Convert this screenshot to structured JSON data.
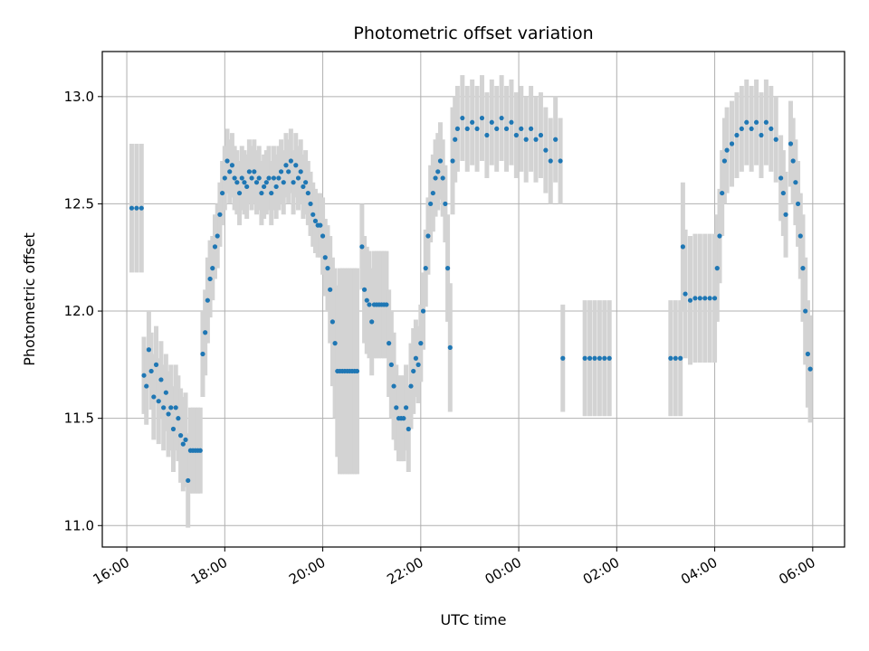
{
  "chart_data": {
    "type": "scatter",
    "title": "Photometric offset variation",
    "xlabel": "UTC time",
    "ylabel": "Photometric offset",
    "x_unit": "hours since 16:00 UTC",
    "xlim": [
      -0.5,
      14.65
    ],
    "ylim": [
      10.9,
      13.21
    ],
    "x_ticks": [
      {
        "value": 0,
        "label": "16:00"
      },
      {
        "value": 2,
        "label": "18:00"
      },
      {
        "value": 4,
        "label": "20:00"
      },
      {
        "value": 6,
        "label": "22:00"
      },
      {
        "value": 8,
        "label": "00:00"
      },
      {
        "value": 10,
        "label": "02:00"
      },
      {
        "value": 12,
        "label": "04:00"
      },
      {
        "value": 14,
        "label": "06:00"
      }
    ],
    "y_ticks": [
      {
        "value": 11.0,
        "label": "11.0"
      },
      {
        "value": 11.5,
        "label": "11.5"
      },
      {
        "value": 12.0,
        "label": "12.0"
      },
      {
        "value": 12.5,
        "label": "12.5"
      },
      {
        "value": 13.0,
        "label": "13.0"
      }
    ],
    "grid": true,
    "series": [
      {
        "name": "Photometric offset",
        "marker_color": "#1f77b4",
        "errorbar_color": "#d3d3d3",
        "points": [
          [
            0.1,
            12.48,
            0.3
          ],
          [
            0.2,
            12.48,
            0.3
          ],
          [
            0.3,
            12.48,
            0.3
          ],
          [
            0.35,
            11.7,
            0.18
          ],
          [
            0.4,
            11.65,
            0.18
          ],
          [
            0.45,
            11.82,
            0.18
          ],
          [
            0.5,
            11.72,
            0.18
          ],
          [
            0.55,
            11.6,
            0.2
          ],
          [
            0.6,
            11.75,
            0.18
          ],
          [
            0.65,
            11.58,
            0.2
          ],
          [
            0.7,
            11.68,
            0.18
          ],
          [
            0.75,
            11.55,
            0.2
          ],
          [
            0.8,
            11.62,
            0.18
          ],
          [
            0.85,
            11.52,
            0.2
          ],
          [
            0.9,
            11.55,
            0.2
          ],
          [
            0.95,
            11.45,
            0.2
          ],
          [
            1.0,
            11.55,
            0.2
          ],
          [
            1.05,
            11.5,
            0.2
          ],
          [
            1.1,
            11.42,
            0.22
          ],
          [
            1.15,
            11.38,
            0.22
          ],
          [
            1.2,
            11.4,
            0.22
          ],
          [
            1.25,
            11.21,
            0.22
          ],
          [
            1.3,
            11.35,
            0.2
          ],
          [
            1.35,
            11.35,
            0.2
          ],
          [
            1.4,
            11.35,
            0.2
          ],
          [
            1.45,
            11.35,
            0.2
          ],
          [
            1.5,
            11.35,
            0.2
          ],
          [
            1.55,
            11.8,
            0.2
          ],
          [
            1.6,
            11.9,
            0.2
          ],
          [
            1.65,
            12.05,
            0.2
          ],
          [
            1.7,
            12.15,
            0.18
          ],
          [
            1.75,
            12.2,
            0.15
          ],
          [
            1.8,
            12.3,
            0.15
          ],
          [
            1.85,
            12.35,
            0.15
          ],
          [
            1.9,
            12.45,
            0.15
          ],
          [
            1.95,
            12.55,
            0.15
          ],
          [
            2.0,
            12.62,
            0.15
          ],
          [
            2.05,
            12.7,
            0.15
          ],
          [
            2.1,
            12.65,
            0.15
          ],
          [
            2.15,
            12.68,
            0.15
          ],
          [
            2.2,
            12.62,
            0.15
          ],
          [
            2.25,
            12.6,
            0.15
          ],
          [
            2.3,
            12.55,
            0.15
          ],
          [
            2.35,
            12.62,
            0.15
          ],
          [
            2.4,
            12.6,
            0.15
          ],
          [
            2.45,
            12.58,
            0.15
          ],
          [
            2.5,
            12.65,
            0.15
          ],
          [
            2.55,
            12.62,
            0.15
          ],
          [
            2.6,
            12.65,
            0.15
          ],
          [
            2.65,
            12.6,
            0.15
          ],
          [
            2.7,
            12.62,
            0.15
          ],
          [
            2.75,
            12.55,
            0.15
          ],
          [
            2.8,
            12.58,
            0.15
          ],
          [
            2.85,
            12.6,
            0.15
          ],
          [
            2.9,
            12.62,
            0.15
          ],
          [
            2.95,
            12.55,
            0.15
          ],
          [
            3.0,
            12.62,
            0.15
          ],
          [
            3.05,
            12.58,
            0.15
          ],
          [
            3.1,
            12.62,
            0.15
          ],
          [
            3.15,
            12.65,
            0.15
          ],
          [
            3.2,
            12.6,
            0.15
          ],
          [
            3.25,
            12.68,
            0.15
          ],
          [
            3.3,
            12.65,
            0.15
          ],
          [
            3.35,
            12.7,
            0.15
          ],
          [
            3.4,
            12.6,
            0.15
          ],
          [
            3.45,
            12.68,
            0.15
          ],
          [
            3.5,
            12.62,
            0.15
          ],
          [
            3.55,
            12.65,
            0.15
          ],
          [
            3.6,
            12.58,
            0.15
          ],
          [
            3.65,
            12.6,
            0.15
          ],
          [
            3.7,
            12.55,
            0.15
          ],
          [
            3.75,
            12.5,
            0.15
          ],
          [
            3.8,
            12.45,
            0.15
          ],
          [
            3.85,
            12.42,
            0.15
          ],
          [
            3.9,
            12.4,
            0.15
          ],
          [
            3.95,
            12.4,
            0.15
          ],
          [
            4.0,
            12.35,
            0.18
          ],
          [
            4.05,
            12.25,
            0.18
          ],
          [
            4.1,
            12.2,
            0.2
          ],
          [
            4.15,
            12.1,
            0.25
          ],
          [
            4.2,
            11.95,
            0.3
          ],
          [
            4.25,
            11.85,
            0.35
          ],
          [
            4.3,
            11.72,
            0.4
          ],
          [
            4.35,
            11.72,
            0.48
          ],
          [
            4.4,
            11.72,
            0.48
          ],
          [
            4.45,
            11.72,
            0.48
          ],
          [
            4.5,
            11.72,
            0.48
          ],
          [
            4.55,
            11.72,
            0.48
          ],
          [
            4.6,
            11.72,
            0.48
          ],
          [
            4.65,
            11.72,
            0.48
          ],
          [
            4.7,
            11.72,
            0.48
          ],
          [
            4.8,
            12.3,
            0.2
          ],
          [
            4.85,
            12.1,
            0.25
          ],
          [
            4.9,
            12.05,
            0.25
          ],
          [
            4.95,
            12.03,
            0.25
          ],
          [
            5.0,
            11.95,
            0.25
          ],
          [
            5.05,
            12.03,
            0.25
          ],
          [
            5.1,
            12.03,
            0.25
          ],
          [
            5.15,
            12.03,
            0.25
          ],
          [
            5.2,
            12.03,
            0.25
          ],
          [
            5.25,
            12.03,
            0.25
          ],
          [
            5.3,
            12.03,
            0.25
          ],
          [
            5.35,
            11.85,
            0.25
          ],
          [
            5.4,
            11.75,
            0.25
          ],
          [
            5.45,
            11.65,
            0.25
          ],
          [
            5.5,
            11.55,
            0.2
          ],
          [
            5.55,
            11.5,
            0.2
          ],
          [
            5.6,
            11.5,
            0.2
          ],
          [
            5.65,
            11.5,
            0.2
          ],
          [
            5.7,
            11.55,
            0.2
          ],
          [
            5.75,
            11.45,
            0.2
          ],
          [
            5.8,
            11.65,
            0.2
          ],
          [
            5.85,
            11.72,
            0.2
          ],
          [
            5.9,
            11.78,
            0.18
          ],
          [
            5.95,
            11.75,
            0.18
          ],
          [
            6.0,
            11.85,
            0.18
          ],
          [
            6.05,
            12.0,
            0.18
          ],
          [
            6.1,
            12.2,
            0.18
          ],
          [
            6.15,
            12.35,
            0.18
          ],
          [
            6.2,
            12.5,
            0.18
          ],
          [
            6.25,
            12.55,
            0.18
          ],
          [
            6.3,
            12.62,
            0.18
          ],
          [
            6.35,
            12.65,
            0.18
          ],
          [
            6.4,
            12.7,
            0.18
          ],
          [
            6.45,
            12.62,
            0.18
          ],
          [
            6.5,
            12.5,
            0.18
          ],
          [
            6.55,
            12.2,
            0.25
          ],
          [
            6.6,
            11.83,
            0.3
          ],
          [
            6.65,
            12.7,
            0.25
          ],
          [
            6.7,
            12.8,
            0.2
          ],
          [
            6.75,
            12.85,
            0.2
          ],
          [
            6.85,
            12.9,
            0.2
          ],
          [
            6.95,
            12.85,
            0.2
          ],
          [
            7.05,
            12.88,
            0.2
          ],
          [
            7.15,
            12.85,
            0.2
          ],
          [
            7.25,
            12.9,
            0.2
          ],
          [
            7.35,
            12.82,
            0.2
          ],
          [
            7.45,
            12.88,
            0.2
          ],
          [
            7.55,
            12.85,
            0.2
          ],
          [
            7.65,
            12.9,
            0.2
          ],
          [
            7.75,
            12.85,
            0.2
          ],
          [
            7.85,
            12.88,
            0.2
          ],
          [
            7.95,
            12.82,
            0.2
          ],
          [
            8.05,
            12.85,
            0.2
          ],
          [
            8.15,
            12.8,
            0.2
          ],
          [
            8.25,
            12.85,
            0.2
          ],
          [
            8.35,
            12.8,
            0.2
          ],
          [
            8.45,
            12.82,
            0.2
          ],
          [
            8.55,
            12.75,
            0.2
          ],
          [
            8.65,
            12.7,
            0.2
          ],
          [
            8.75,
            12.8,
            0.2
          ],
          [
            8.85,
            12.7,
            0.2
          ],
          [
            8.9,
            11.78,
            0.25
          ],
          [
            9.35,
            11.78,
            0.27
          ],
          [
            9.45,
            11.78,
            0.27
          ],
          [
            9.55,
            11.78,
            0.27
          ],
          [
            9.65,
            11.78,
            0.27
          ],
          [
            9.75,
            11.78,
            0.27
          ],
          [
            9.85,
            11.78,
            0.27
          ],
          [
            11.1,
            11.78,
            0.27
          ],
          [
            11.2,
            11.78,
            0.27
          ],
          [
            11.3,
            11.78,
            0.27
          ],
          [
            11.35,
            12.3,
            0.3
          ],
          [
            11.4,
            12.08,
            0.3
          ],
          [
            11.5,
            12.05,
            0.3
          ],
          [
            11.6,
            12.06,
            0.3
          ],
          [
            11.7,
            12.06,
            0.3
          ],
          [
            11.8,
            12.06,
            0.3
          ],
          [
            11.9,
            12.06,
            0.3
          ],
          [
            12.0,
            12.06,
            0.3
          ],
          [
            12.05,
            12.2,
            0.25
          ],
          [
            12.1,
            12.35,
            0.22
          ],
          [
            12.15,
            12.55,
            0.2
          ],
          [
            12.2,
            12.7,
            0.2
          ],
          [
            12.25,
            12.75,
            0.2
          ],
          [
            12.35,
            12.78,
            0.2
          ],
          [
            12.45,
            12.82,
            0.2
          ],
          [
            12.55,
            12.85,
            0.2
          ],
          [
            12.65,
            12.88,
            0.2
          ],
          [
            12.75,
            12.85,
            0.2
          ],
          [
            12.85,
            12.88,
            0.2
          ],
          [
            12.95,
            12.82,
            0.2
          ],
          [
            13.05,
            12.88,
            0.2
          ],
          [
            13.15,
            12.85,
            0.2
          ],
          [
            13.25,
            12.8,
            0.2
          ],
          [
            13.35,
            12.62,
            0.2
          ],
          [
            13.4,
            12.55,
            0.2
          ],
          [
            13.45,
            12.45,
            0.2
          ],
          [
            13.55,
            12.78,
            0.2
          ],
          [
            13.6,
            12.7,
            0.2
          ],
          [
            13.65,
            12.6,
            0.2
          ],
          [
            13.7,
            12.5,
            0.2
          ],
          [
            13.75,
            12.35,
            0.2
          ],
          [
            13.8,
            12.2,
            0.25
          ],
          [
            13.85,
            12.0,
            0.25
          ],
          [
            13.9,
            11.8,
            0.25
          ],
          [
            13.95,
            11.73,
            0.25
          ]
        ]
      }
    ]
  }
}
